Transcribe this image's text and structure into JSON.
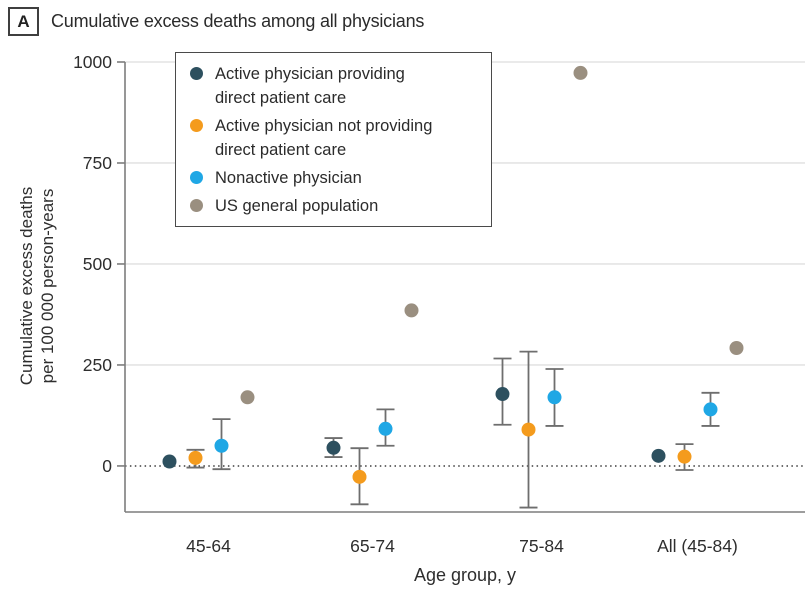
{
  "panel": {
    "letter": "A",
    "title": "Cumulative excess deaths among all physicians"
  },
  "legend": {
    "items": [
      {
        "lines": [
          "Active physician providing",
          "direct patient care"
        ]
      },
      {
        "lines": [
          "Active physician not providing",
          "direct patient care"
        ]
      },
      {
        "lines": [
          "Nonactive physician"
        ]
      },
      {
        "lines": [
          "US general population"
        ]
      }
    ]
  },
  "chart_data": {
    "type": "scatter",
    "title": "Cumulative excess deaths among all physicians",
    "xlabel": "Age group, y",
    "ylabel": "Cumulative excess deaths per 100 000 person-years",
    "ylabel_lines": [
      "Cumulative excess deaths",
      "per 100 000 person-years"
    ],
    "categories": [
      "45-64",
      "65-74",
      "75-84",
      "All (45-84)"
    ],
    "ylim": [
      -114,
      1000
    ],
    "yticks": [
      0,
      250,
      500,
      750,
      1000
    ],
    "grid_ticks": [
      250,
      500,
      750,
      1000
    ],
    "zero_line": 0,
    "grid": true,
    "legend_position": "inside-top-left",
    "units": "excess deaths per 100 000 person-years",
    "series": [
      {
        "name": "Active physician providing direct patient care",
        "color": "#2D505F",
        "points": [
          {
            "y": 11,
            "lo": null,
            "hi": null
          },
          {
            "y": 45,
            "lo": 22,
            "hi": 69
          },
          {
            "y": 178,
            "lo": 102,
            "hi": 266
          },
          {
            "y": 25,
            "lo": null,
            "hi": null
          }
        ]
      },
      {
        "name": "Active physician not providing direct patient care",
        "color": "#F49B1D",
        "points": [
          {
            "y": 20,
            "lo": -4,
            "hi": 40
          },
          {
            "y": -27,
            "lo": -95,
            "hi": 44
          },
          {
            "y": 90,
            "lo": -103,
            "hi": 283
          },
          {
            "y": 23,
            "lo": -10,
            "hi": 54
          }
        ]
      },
      {
        "name": "Nonactive physician",
        "color": "#1FA7E5",
        "points": [
          {
            "y": 50,
            "lo": -8,
            "hi": 116
          },
          {
            "y": 92,
            "lo": 50,
            "hi": 140
          },
          {
            "y": 170,
            "lo": 99,
            "hi": 240
          },
          {
            "y": 140,
            "lo": 99,
            "hi": 181
          }
        ]
      },
      {
        "name": "US general population",
        "color": "#9A8F80",
        "points": [
          {
            "y": 170,
            "lo": null,
            "hi": null
          },
          {
            "y": 385,
            "lo": null,
            "hi": null
          },
          {
            "y": 973,
            "lo": null,
            "hi": null
          },
          {
            "y": 292,
            "lo": null,
            "hi": null
          }
        ]
      }
    ],
    "style": {
      "grid_color": "#E4E4E4",
      "axis_color": "#7D7D7D",
      "errorbar_color": "#6E6E6E",
      "zero_line_color": "#3D3D3D",
      "text_color": "#2E2E2E"
    }
  }
}
